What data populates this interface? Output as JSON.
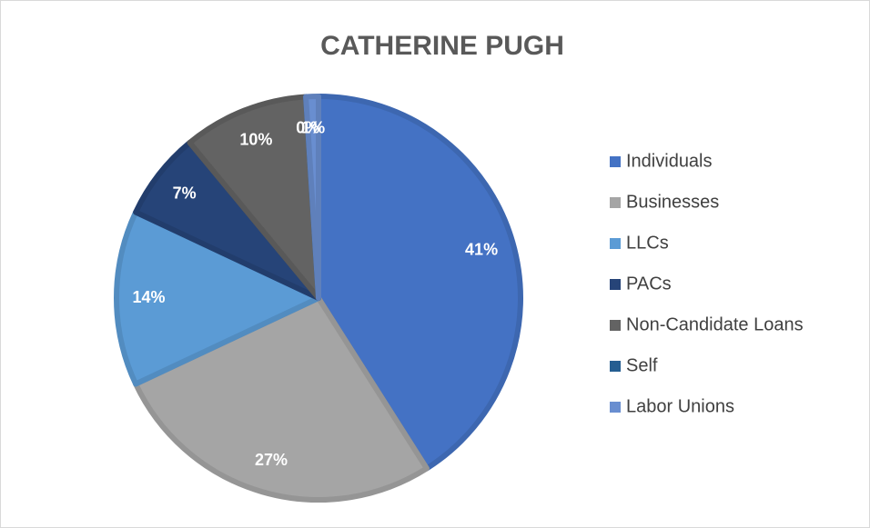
{
  "chart_data": {
    "type": "pie",
    "title": "CATHERINE PUGH",
    "categories": [
      "Individuals",
      "Businesses",
      "LLCs",
      "PACs",
      "Non-Candidate Loans",
      "Self",
      "Labor Unions"
    ],
    "values": [
      41,
      27,
      14,
      7,
      10,
      0,
      1
    ],
    "value_labels": [
      "41%",
      "27%",
      "14%",
      "7%",
      "10%",
      "0%",
      "1%"
    ],
    "colors": [
      "#4472c4",
      "#a5a5a5",
      "#5b9bd5",
      "#264478",
      "#636363",
      "#255e91",
      "#698ed0"
    ],
    "legend": "right"
  }
}
